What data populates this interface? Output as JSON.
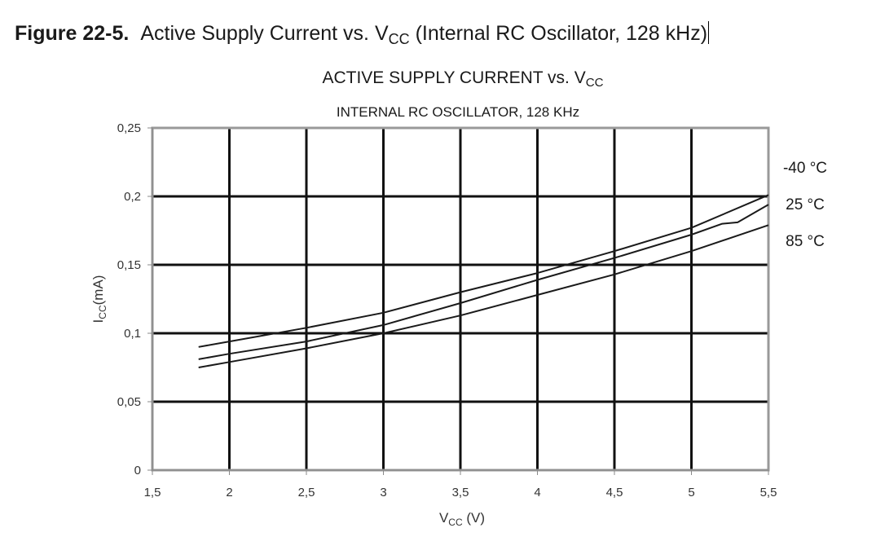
{
  "figure": {
    "number": "Figure 22-5.",
    "caption_main": "Active Supply Current vs. V",
    "caption_sub": "CC",
    "caption_tail": " (Internal RC Oscillator, 128 kHz)"
  },
  "chart_data": {
    "type": "line",
    "title_main": "ACTIVE SUPPLY CURRENT vs. V",
    "title_sub": "CC",
    "subtitle": "INTERNAL RC OSCILLATOR, 128 KHz",
    "xlabel_main": "V",
    "xlabel_sub": "CC",
    "xlabel_tail": " (V)",
    "ylabel_main": "I",
    "ylabel_sub": "CC",
    "ylabel_tail": "(mA)",
    "xlim": [
      1.5,
      5.5
    ],
    "ylim": [
      0,
      0.25
    ],
    "x_ticks": [
      1.5,
      2,
      2.5,
      3,
      3.5,
      4,
      4.5,
      5,
      5.5
    ],
    "x_tick_labels": [
      "1,5",
      "2",
      "2,5",
      "3",
      "3,5",
      "4",
      "4,5",
      "5",
      "5,5"
    ],
    "y_ticks": [
      0,
      0.05,
      0.1,
      0.15,
      0.2,
      0.25
    ],
    "y_tick_labels": [
      "0",
      "0,05",
      "0,1",
      "0,15",
      "0,2",
      "0,25"
    ],
    "grid": true,
    "legend": "inline-right",
    "colors": {
      "line": "#1a1a1a",
      "grid": "#111111",
      "frame": "#999999",
      "axis": "#888888"
    },
    "series": [
      {
        "name": "-40 °C",
        "x": [
          1.8,
          2.0,
          2.5,
          3.0,
          3.5,
          4.0,
          4.5,
          5.0,
          5.5
        ],
        "values": [
          0.09,
          0.094,
          0.104,
          0.115,
          0.13,
          0.144,
          0.16,
          0.177,
          0.201
        ]
      },
      {
        "name": "25 °C",
        "x": [
          1.8,
          2.0,
          2.5,
          3.0,
          3.5,
          4.0,
          4.5,
          5.0,
          5.2,
          5.3,
          5.5
        ],
        "values": [
          0.081,
          0.085,
          0.094,
          0.106,
          0.122,
          0.139,
          0.155,
          0.172,
          0.18,
          0.181,
          0.194
        ]
      },
      {
        "name": "85 °C",
        "x": [
          1.8,
          2.0,
          2.5,
          3.0,
          3.5,
          4.0,
          4.5,
          5.0,
          5.5
        ],
        "values": [
          0.075,
          0.079,
          0.089,
          0.1,
          0.113,
          0.128,
          0.143,
          0.16,
          0.179
        ]
      }
    ]
  }
}
